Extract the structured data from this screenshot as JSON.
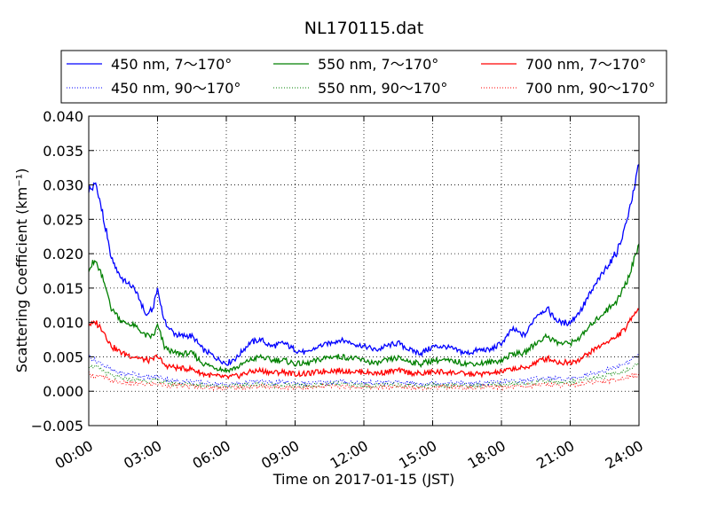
{
  "chart_data": {
    "type": "line",
    "title": "NL170115.dat",
    "xlabel": "Time on 2017-01-15 (JST)",
    "ylabel": "Scattering Coefficient (km⁻¹)",
    "xlim": [
      0,
      24
    ],
    "ylim": [
      -0.005,
      0.04
    ],
    "xticks": [
      0,
      3,
      6,
      9,
      12,
      15,
      18,
      21,
      24
    ],
    "xtick_labels": [
      "00:00",
      "03:00",
      "06:00",
      "09:00",
      "12:00",
      "15:00",
      "18:00",
      "21:00",
      "24:00"
    ],
    "yticks": [
      -0.005,
      0.0,
      0.005,
      0.01,
      0.015,
      0.02,
      0.025,
      0.03,
      0.035,
      0.04
    ],
    "ytick_labels": [
      "−0.005",
      "0.000",
      "0.005",
      "0.010",
      "0.015",
      "0.020",
      "0.025",
      "0.030",
      "0.035",
      "0.040"
    ],
    "grid": true,
    "legend_position": "top",
    "x_hours": [
      0,
      0.3,
      0.6,
      1,
      1.5,
      2,
      2.5,
      2.8,
      3,
      3.3,
      3.7,
      4,
      4.5,
      5,
      5.5,
      6,
      6.5,
      7,
      7.5,
      8,
      8.5,
      9,
      9.5,
      10,
      10.5,
      11,
      11.5,
      12,
      12.5,
      13,
      13.5,
      14,
      14.5,
      15,
      15.5,
      16,
      16.5,
      17,
      17.5,
      18,
      18.5,
      19,
      19.5,
      20,
      20.5,
      21,
      21.5,
      22,
      22.5,
      23,
      23.5,
      23.8,
      24
    ],
    "series": [
      {
        "name": "450 nm, 7～170°",
        "color": "#0000ff",
        "style": "solid",
        "values": [
          0.029,
          0.03,
          0.026,
          0.019,
          0.016,
          0.015,
          0.011,
          0.012,
          0.015,
          0.01,
          0.0085,
          0.008,
          0.008,
          0.006,
          0.005,
          0.004,
          0.005,
          0.007,
          0.0075,
          0.0065,
          0.007,
          0.006,
          0.0055,
          0.0065,
          0.007,
          0.0075,
          0.007,
          0.0065,
          0.006,
          0.0065,
          0.007,
          0.006,
          0.0055,
          0.0065,
          0.0065,
          0.006,
          0.0055,
          0.006,
          0.006,
          0.007,
          0.009,
          0.008,
          0.011,
          0.012,
          0.01,
          0.01,
          0.012,
          0.015,
          0.0175,
          0.02,
          0.025,
          0.03,
          0.033
        ]
      },
      {
        "name": "550 nm, 7～170°",
        "color": "#008000",
        "style": "solid",
        "values": [
          0.018,
          0.019,
          0.0165,
          0.012,
          0.01,
          0.0095,
          0.008,
          0.008,
          0.0095,
          0.0065,
          0.0055,
          0.0055,
          0.0055,
          0.004,
          0.0035,
          0.003,
          0.0035,
          0.0045,
          0.005,
          0.0045,
          0.0045,
          0.004,
          0.004,
          0.0045,
          0.005,
          0.005,
          0.0048,
          0.0045,
          0.004,
          0.0045,
          0.0048,
          0.0043,
          0.004,
          0.0045,
          0.0045,
          0.0043,
          0.004,
          0.004,
          0.0042,
          0.0045,
          0.0055,
          0.0055,
          0.007,
          0.008,
          0.007,
          0.007,
          0.008,
          0.01,
          0.0115,
          0.013,
          0.016,
          0.0195,
          0.021
        ]
      },
      {
        "name": "700 nm, 7～170°",
        "color": "#ff0000",
        "style": "solid",
        "values": [
          0.0098,
          0.01,
          0.009,
          0.0065,
          0.0055,
          0.005,
          0.0045,
          0.0045,
          0.0052,
          0.0038,
          0.0035,
          0.0033,
          0.0032,
          0.0025,
          0.0022,
          0.002,
          0.0022,
          0.0028,
          0.003,
          0.0027,
          0.0028,
          0.0025,
          0.0025,
          0.0028,
          0.003,
          0.003,
          0.0029,
          0.0028,
          0.0026,
          0.0028,
          0.003,
          0.0027,
          0.0025,
          0.0028,
          0.0028,
          0.0027,
          0.0025,
          0.0025,
          0.0026,
          0.0028,
          0.0033,
          0.0033,
          0.0042,
          0.0048,
          0.0042,
          0.0042,
          0.0048,
          0.006,
          0.007,
          0.0078,
          0.0095,
          0.0115,
          0.012
        ]
      },
      {
        "name": "450 nm, 90～170°",
        "color": "#0000ff",
        "style": "dotted",
        "values": [
          0.005,
          0.0045,
          0.004,
          0.003,
          0.0025,
          0.0025,
          0.002,
          0.002,
          0.0022,
          0.0018,
          0.0015,
          0.0015,
          0.0014,
          0.0012,
          0.0011,
          0.001,
          0.0011,
          0.0013,
          0.0014,
          0.0012,
          0.0013,
          0.0012,
          0.0011,
          0.0012,
          0.0013,
          0.0014,
          0.0013,
          0.0012,
          0.0012,
          0.0013,
          0.0013,
          0.0012,
          0.0011,
          0.0012,
          0.0012,
          0.0012,
          0.0011,
          0.0011,
          0.0012,
          0.0013,
          0.0015,
          0.0015,
          0.0018,
          0.002,
          0.0018,
          0.0018,
          0.0022,
          0.0026,
          0.003,
          0.0035,
          0.0042,
          0.0048,
          0.0052
        ]
      },
      {
        "name": "550 nm, 90～170°",
        "color": "#008000",
        "style": "dotted",
        "values": [
          0.0038,
          0.0035,
          0.003,
          0.0022,
          0.0018,
          0.0017,
          0.0015,
          0.0015,
          0.0016,
          0.0013,
          0.0011,
          0.0011,
          0.001,
          0.0009,
          0.0008,
          0.0007,
          0.0008,
          0.0009,
          0.001,
          0.0009,
          0.0009,
          0.0008,
          0.0008,
          0.0009,
          0.001,
          0.001,
          0.0009,
          0.0009,
          0.0008,
          0.0009,
          0.0009,
          0.0009,
          0.0008,
          0.0009,
          0.0009,
          0.0009,
          0.0008,
          0.0008,
          0.0009,
          0.0009,
          0.0011,
          0.0011,
          0.0013,
          0.0015,
          0.0013,
          0.0013,
          0.0016,
          0.0019,
          0.0022,
          0.0026,
          0.0031,
          0.0036,
          0.004
        ]
      },
      {
        "name": "700 nm, 90～170°",
        "color": "#ff0000",
        "style": "dotted",
        "values": [
          0.0025,
          0.0022,
          0.002,
          0.0015,
          0.0012,
          0.0011,
          0.001,
          0.001,
          0.0011,
          0.0009,
          0.0008,
          0.0008,
          0.0007,
          0.0006,
          0.0005,
          0.0005,
          0.0005,
          0.0006,
          0.0007,
          0.0006,
          0.0006,
          0.0006,
          0.0005,
          0.0006,
          0.0007,
          0.0007,
          0.0006,
          0.0006,
          0.0006,
          0.0006,
          0.0006,
          0.0006,
          0.0005,
          0.0006,
          0.0006,
          0.0006,
          0.0005,
          0.0005,
          0.0006,
          0.0006,
          0.0007,
          0.0007,
          0.0009,
          0.001,
          0.0009,
          0.0009,
          0.0011,
          0.0013,
          0.0015,
          0.0017,
          0.002,
          0.0023,
          0.0025
        ]
      }
    ]
  }
}
